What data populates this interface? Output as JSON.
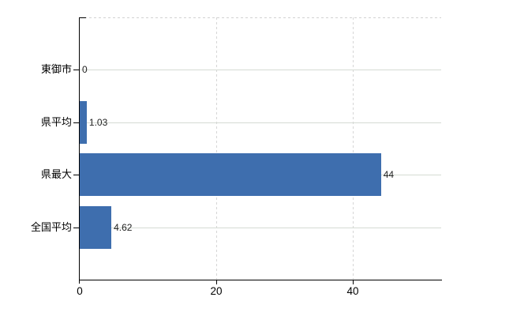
{
  "chart_data": {
    "type": "bar",
    "orientation": "horizontal",
    "title": "",
    "categories": [
      "東御市",
      "県平均",
      "県最大",
      "全国平均"
    ],
    "values": [
      0,
      1.03,
      44,
      4.62
    ],
    "value_labels": [
      "0",
      "1.03",
      "44",
      "4.62"
    ],
    "x_ticks": [
      0,
      20,
      40
    ],
    "x_tick_labels": [
      "0",
      "20",
      "40"
    ],
    "xlim": [
      0,
      52.8
    ],
    "grid": true,
    "legend": "none",
    "colors": {
      "bar": "#3e6eae",
      "axis": "#000000",
      "grid_solid": "#d5dbd3",
      "grid_dashed": "#d6d6d6",
      "category_text": "#000000",
      "value_text": "#222222",
      "background": "#ffffff"
    }
  }
}
